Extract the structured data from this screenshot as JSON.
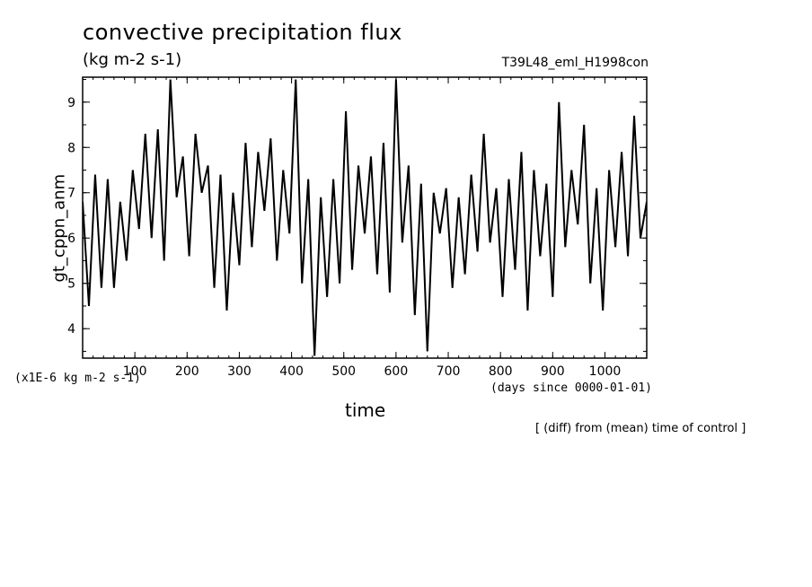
{
  "chart_data": {
    "type": "line",
    "title": "convective precipitation flux",
    "units": "(kg m-2 s-1)",
    "run_label": "T39L48_eml_H1998con",
    "ylabel": "gt_cppn_anm",
    "y_unit_label": "(x1E-6 kg m-2 s-1)",
    "xlabel": "time",
    "x_unit_label": "(days since 0000-01-01)",
    "footnote": "[ (diff) from (mean) time of control ]",
    "xlim": [
      0,
      1080
    ],
    "ylim": [
      3.35,
      9.55
    ],
    "x_ticks": [
      100,
      200,
      300,
      400,
      500,
      600,
      700,
      800,
      900,
      1000
    ],
    "y_ticks": [
      4,
      5,
      6,
      7,
      8,
      9
    ],
    "x": [
      0,
      12,
      24,
      36,
      48,
      60,
      72,
      84,
      96,
      108,
      120,
      132,
      144,
      156,
      168,
      180,
      192,
      204,
      216,
      228,
      240,
      252,
      264,
      276,
      288,
      300,
      312,
      324,
      336,
      348,
      360,
      372,
      384,
      396,
      408,
      420,
      432,
      444,
      456,
      468,
      480,
      492,
      504,
      516,
      528,
      540,
      552,
      564,
      576,
      588,
      600,
      612,
      624,
      636,
      648,
      660,
      672,
      684,
      696,
      708,
      720,
      732,
      744,
      756,
      768,
      780,
      792,
      804,
      816,
      828,
      840,
      852,
      864,
      876,
      888,
      900,
      912,
      924,
      936,
      948,
      960,
      972,
      984,
      996,
      1008,
      1020,
      1032,
      1044,
      1056,
      1068,
      1080
    ],
    "series": [
      {
        "values": [
          6.8,
          4.5,
          7.4,
          4.9,
          7.3,
          4.9,
          6.8,
          5.5,
          7.5,
          6.2,
          8.3,
          6.0,
          8.4,
          5.5,
          9.5,
          6.9,
          7.8,
          5.6,
          8.3,
          7.0,
          7.6,
          4.9,
          7.4,
          4.4,
          7.0,
          5.4,
          8.1,
          5.8,
          7.9,
          6.6,
          8.2,
          5.5,
          7.5,
          6.1,
          9.5,
          5.0,
          7.3,
          3.4,
          6.9,
          4.7,
          7.3,
          5.0,
          8.8,
          5.3,
          7.6,
          6.1,
          7.8,
          5.2,
          8.1,
          4.8,
          9.5,
          5.9,
          7.6,
          4.3,
          7.2,
          3.5,
          7.0,
          6.1,
          7.1,
          4.9,
          6.9,
          5.2,
          7.4,
          5.7,
          8.3,
          5.9,
          7.1,
          4.7,
          7.3,
          5.3,
          7.9,
          4.4,
          7.5,
          5.6,
          7.2,
          4.7,
          9.0,
          5.8,
          7.5,
          6.3,
          8.5,
          5.0,
          7.1,
          4.4,
          7.5,
          5.8,
          7.9,
          5.6,
          8.7,
          6.0,
          6.8
        ]
      }
    ]
  }
}
